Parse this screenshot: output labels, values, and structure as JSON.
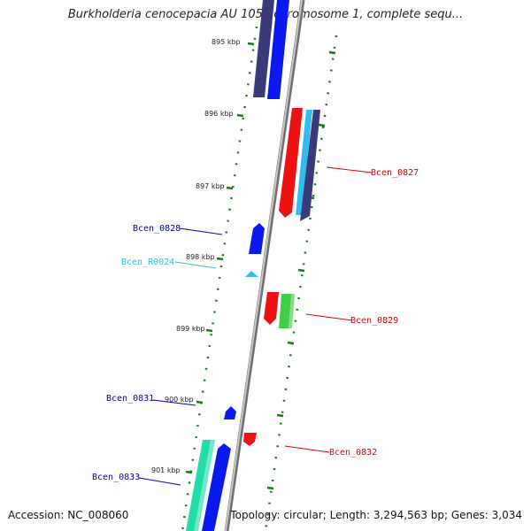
{
  "title": "Burkholderia cenocepacia AU 1054 chromosome 1, complete sequ...",
  "footer": {
    "accession": "Accession: NC_008060",
    "topology": "Topology: circular; Length: 3,294,563 bp; Genes: 3,034"
  },
  "ruler": {
    "labels": [
      "895 kbp",
      "896 kbp",
      "897 kbp",
      "898 kbp",
      "899 kbp",
      "900 kbp",
      "901 kbp"
    ]
  },
  "genes": [
    {
      "id": "Bcen_0827",
      "color": "#dd0000"
    },
    {
      "id": "Bcen_0828",
      "color": "#0000aa"
    },
    {
      "id": "Bcen_R0024",
      "color": "#33bbdd"
    },
    {
      "id": "Bcen_0829",
      "color": "#dd0000"
    },
    {
      "id": "Bcen_0831",
      "color": "#0000aa"
    },
    {
      "id": "Bcen_0832",
      "color": "#dd0000"
    },
    {
      "id": "Bcen_0833",
      "color": "#0000aa"
    }
  ],
  "colors": {
    "backbone": "#888888",
    "tick": "#1a7a1a",
    "blue": "#0a1aee",
    "navy": "#3a3a7a",
    "red": "#ee1111",
    "green": "#44cc44",
    "cyan": "#33bbee",
    "aqua": "#22ddaa"
  }
}
